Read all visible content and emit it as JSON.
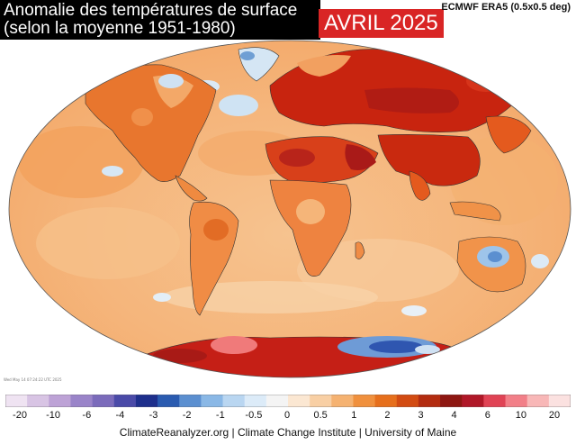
{
  "title": {
    "line1": "Anomalie des températures de surface",
    "line2": "(selon la moyenne 1951-1980)"
  },
  "date_label": "AVRIL 2025",
  "source_label": "ECMWF ERA5 (0.5x0.5 deg)",
  "timestamp": "Wed May 14 07:24:22 UTC 2025",
  "colorbar": {
    "ticks": [
      "-20",
      "-10",
      "-6",
      "-4",
      "-3",
      "-2",
      "-1",
      "-0.5",
      "0",
      "0.5",
      "1",
      "2",
      "3",
      "4",
      "6",
      "10",
      "20"
    ],
    "colors": [
      "#efe3f2",
      "#d8c4e4",
      "#bda2d6",
      "#9a84c9",
      "#7b6bbb",
      "#4a4aa8",
      "#1e2f8c",
      "#2a5bb0",
      "#5b8fd0",
      "#8ab8e6",
      "#b9d6f1",
      "#dcebf8",
      "#f4f4f4",
      "#fbe7d2",
      "#f8cfa4",
      "#f5b271",
      "#f0903d",
      "#e66f1c",
      "#d24b12",
      "#b32c10",
      "#8e1712",
      "#b01828",
      "#e04355",
      "#f27f88",
      "#f8b7b7",
      "#fbe1e0"
    ]
  },
  "credits": "ClimateReanalyzer.org | Climate Change Institute | University of Maine"
}
